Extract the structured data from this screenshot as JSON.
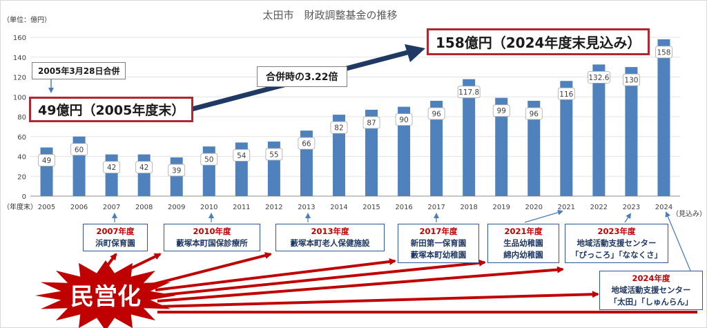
{
  "chart_data": {
    "type": "bar",
    "title": "太田市　財政調整基金の推移",
    "ylabel": "（単位：億円）",
    "xlabel": "（年度末）",
    "x_suffix_note": "（見込み）",
    "ylim": [
      0,
      160
    ],
    "yticks": [
      0,
      20,
      40,
      60,
      80,
      100,
      120,
      140,
      160
    ],
    "grid": true,
    "categories": [
      "2005",
      "2006",
      "2007",
      "2008",
      "2009",
      "2010",
      "2011",
      "2012",
      "2013",
      "2014",
      "2015",
      "2016",
      "2017",
      "2018",
      "2019",
      "2020",
      "2021",
      "2022",
      "2023",
      "2024"
    ],
    "values": [
      49,
      60,
      42,
      42,
      39,
      50,
      54,
      55,
      66,
      82,
      87,
      90,
      96,
      117.8,
      99,
      96,
      116,
      132.6,
      130,
      158
    ],
    "data_labels": [
      "49",
      "60",
      "42",
      "42",
      "39",
      "50",
      "54",
      "55",
      "66",
      "82",
      "87",
      "90",
      "96",
      "117.8",
      "99",
      "96",
      "116",
      "132.6",
      "130",
      "158"
    ],
    "bar_color": "#4f81bd"
  },
  "callouts": {
    "start_value": "49億円（2005年度末）",
    "end_value": "158億円（2024年度末見込み）",
    "merger_date": "2005年3月28日合併",
    "ratio": "合併時の3.22倍"
  },
  "privatization": {
    "label": "民営化",
    "color": "#c00000",
    "notes": [
      {
        "year": "2007年度",
        "lines": [
          "浜町保育園"
        ]
      },
      {
        "year": "2010年度",
        "lines": [
          "藪塚本町国保診療所"
        ]
      },
      {
        "year": "2013年度",
        "lines": [
          "藪塚本町老人保健施設"
        ]
      },
      {
        "year": "2017年度",
        "lines": [
          "新田第一保育園",
          "藪塚本町幼稚園"
        ]
      },
      {
        "year": "2021年度",
        "lines": [
          "生品幼稚園",
          "綿内幼稚園"
        ]
      },
      {
        "year": "2023年度",
        "lines": [
          "地域活動支援センター",
          "「ぴっころ」「ななくさ」"
        ]
      },
      {
        "year": "2024年度",
        "lines": [
          "地域活動支援センター",
          "「太田」「しゅんらん」"
        ]
      }
    ]
  }
}
